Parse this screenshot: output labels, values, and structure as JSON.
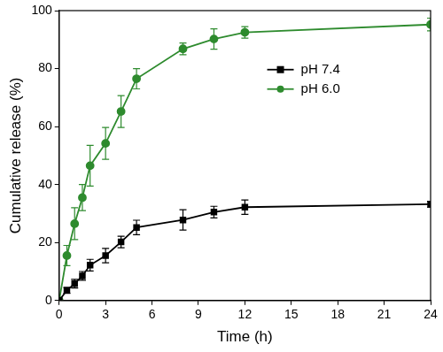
{
  "chart_data": {
    "type": "line",
    "x_label": "Time (h)",
    "y_label": "Cumulative release (%)",
    "x": [
      0,
      0.5,
      1,
      1.5,
      2,
      3,
      4,
      5,
      8,
      10,
      12,
      24
    ],
    "series": [
      {
        "name": "pH 7.4",
        "color": "#000000",
        "marker": "square",
        "line_style": "solid",
        "values": [
          0,
          3.5,
          5.8,
          8.5,
          12.2,
          15.5,
          20.2,
          25.2,
          27.8,
          30.5,
          32.2,
          33.2
        ],
        "errors": [
          0,
          1,
          1.5,
          1.5,
          2,
          2.5,
          2,
          2.5,
          3.5,
          2,
          2.5,
          1
        ]
      },
      {
        "name": "pH 6.0",
        "color": "#2e8b2e",
        "marker": "circle",
        "line_style": "solid",
        "values": [
          0,
          15.5,
          26.5,
          35.5,
          46.5,
          54.2,
          65.2,
          76.5,
          86.8,
          90.2,
          92.5,
          95.2
        ],
        "errors": [
          0,
          3.5,
          5.5,
          4.5,
          7,
          5.5,
          5.5,
          3.5,
          2,
          3.5,
          2,
          2.2
        ]
      }
    ],
    "xlim": [
      0,
      24
    ],
    "xticks": [
      0,
      3,
      6,
      9,
      12,
      15,
      18,
      21,
      24
    ],
    "ylim": [
      0,
      100
    ],
    "yticks": [
      0,
      20,
      40,
      60,
      80,
      100
    ],
    "grid": false,
    "legend": "right"
  }
}
